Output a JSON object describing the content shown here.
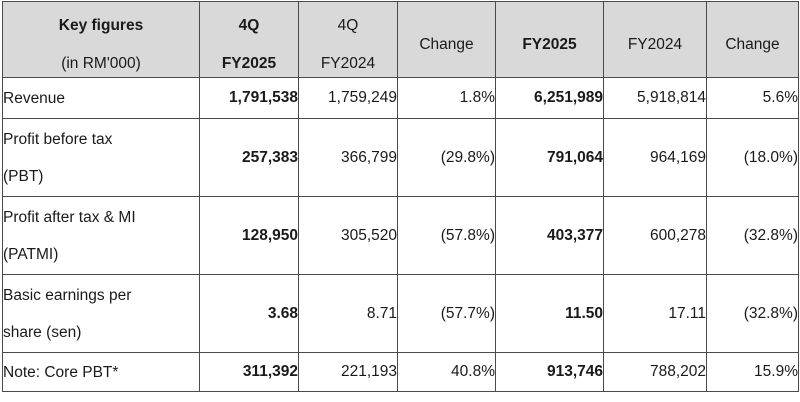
{
  "table": {
    "headers": [
      {
        "line1": "Key figures",
        "line2": "(in RM'000)",
        "bold": false
      },
      {
        "line1": "4Q",
        "line2": "FY2025",
        "bold": true
      },
      {
        "line1": "4Q",
        "line2": "FY2024",
        "bold": false
      },
      {
        "line1": "Change",
        "line2": "",
        "bold": false
      },
      {
        "line1": "FY2025",
        "line2": "",
        "bold": true
      },
      {
        "line1": "FY2024",
        "line2": "",
        "bold": false
      },
      {
        "line1": "Change",
        "line2": "",
        "bold": false
      }
    ],
    "rows": [
      {
        "label_line1": "Revenue",
        "label_line2": "",
        "cells": [
          "1,791,538",
          "1,759,249",
          "1.8%",
          "6,251,989",
          "5,918,814",
          "5.6%"
        ]
      },
      {
        "label_line1": "Profit before tax",
        "label_line2": "(PBT)",
        "cells": [
          "257,383",
          "366,799",
          "(29.8%)",
          "791,064",
          "964,169",
          "(18.0%)"
        ]
      },
      {
        "label_line1": "Profit after tax & MI",
        "label_line2": "(PATMI)",
        "cells": [
          "128,950",
          "305,520",
          "(57.8%)",
          "403,377",
          "600,278",
          "(32.8%)"
        ]
      },
      {
        "label_line1": "Basic earnings per",
        "label_line2": "share (sen)",
        "cells": [
          "3.68",
          "8.71",
          "(57.7%)",
          "11.50",
          "17.11",
          "(32.8%)"
        ]
      },
      {
        "label_line1": "Note: Core PBT*",
        "label_line2": "",
        "cells": [
          "311,392",
          "221,193",
          "40.8%",
          "913,746",
          "788,202",
          "15.9%"
        ]
      }
    ],
    "colors": {
      "header_bg": "#d9d9d9",
      "border": "#4a4a4a",
      "text": "#1a1a1a"
    }
  }
}
